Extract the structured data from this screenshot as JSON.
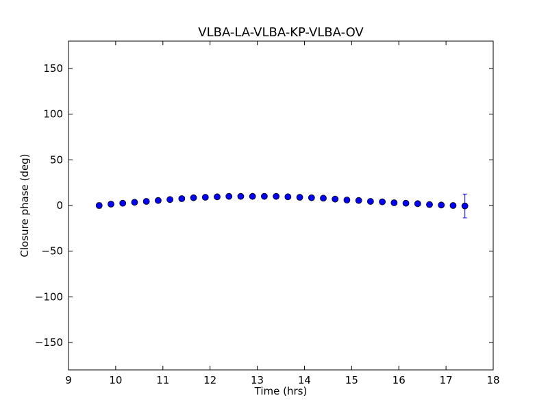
{
  "chart_data": {
    "type": "scatter",
    "title": "VLBA-LA-VLBA-KP-VLBA-OV",
    "xlabel": "Time (hrs)",
    "ylabel": "Closure phase (deg)",
    "xlim": [
      9,
      18
    ],
    "ylim": [
      -180,
      180
    ],
    "xticks": [
      9,
      10,
      11,
      12,
      13,
      14,
      15,
      16,
      17,
      18
    ],
    "yticks": [
      150,
      100,
      50,
      0,
      -50,
      -100,
      -150
    ],
    "ytick_labels": [
      "150",
      "100",
      "50",
      "0",
      "−50",
      "−100",
      "−150"
    ],
    "grid": false,
    "marker_color": "#0000ff",
    "errorbar_color": "#0000ff",
    "series": [
      {
        "x": [
          9.65,
          9.9,
          10.15,
          10.4,
          10.65,
          10.9,
          11.15,
          11.4,
          11.65,
          11.9,
          12.15,
          12.4,
          12.65,
          12.9,
          13.15,
          13.4,
          13.65,
          13.9,
          14.15,
          14.4,
          14.65,
          14.9,
          15.15,
          15.4,
          15.65,
          15.9,
          16.15,
          16.4,
          16.65,
          16.9,
          17.15,
          17.4
        ],
        "y": [
          0,
          1.5,
          2.5,
          3.5,
          4.5,
          5.5,
          6.5,
          7.5,
          8.5,
          9,
          9.5,
          10,
          10,
          10,
          10,
          10,
          9.5,
          9,
          8.5,
          8,
          7,
          6,
          5.5,
          4.5,
          4,
          3,
          2.5,
          2,
          1,
          0.5,
          0,
          -0.5
        ],
        "yerr": [
          3,
          0.5,
          0.5,
          0.5,
          0.5,
          0.5,
          0.5,
          0.5,
          0.5,
          0.5,
          0.5,
          0.5,
          0.5,
          0.5,
          0.5,
          0.5,
          0.5,
          0.5,
          0.5,
          0.5,
          0.5,
          0.5,
          0.5,
          0.5,
          0.5,
          0.5,
          0.5,
          0.5,
          0.5,
          0.5,
          0.5,
          13
        ]
      }
    ]
  }
}
